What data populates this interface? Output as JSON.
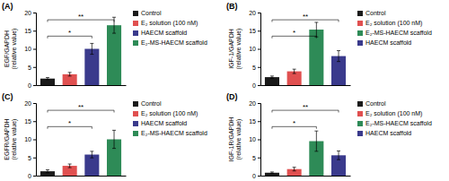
{
  "chart_data": [
    {
      "type": "bar",
      "title": "(A)",
      "y_label": "EGF/GAPDH\n(relative value)",
      "categories": [
        "Control",
        "E₂ solution (100 nM)",
        "HAECM scaffold",
        "E₂-MS-HAECM scaffold"
      ],
      "values": [
        1.8,
        3.0,
        10.0,
        16.5
      ],
      "errors": [
        0.3,
        0.5,
        1.5,
        2.2
      ],
      "colors": [
        "#1a1a1a",
        "#e05050",
        "#3a3a8c",
        "#2e8b57"
      ],
      "ylim": [
        0,
        20
      ],
      "yticks": [
        0,
        5,
        10,
        15,
        20
      ],
      "grid": false,
      "tick_labels": "y",
      "legend": "right",
      "annotations": [
        {
          "from": "Control",
          "to": "HAECM scaffold",
          "y": 13.5,
          "label": "*"
        },
        {
          "from": "Control",
          "to": "E₂-MS-HAECM scaffold",
          "y": 18.0,
          "label": "**"
        }
      ]
    },
    {
      "type": "bar",
      "title": "(B)",
      "y_label": "IGF-1/GAPDH\n(relative value)",
      "categories": [
        "Control",
        "E₂ solution (100 nM)",
        "E₂-MS-HAECM scaffold",
        "HAECM scaffold"
      ],
      "values": [
        2.2,
        3.8,
        15.3,
        8.0
      ],
      "errors": [
        0.3,
        0.6,
        2.0,
        1.5
      ],
      "colors": [
        "#1a1a1a",
        "#e05050",
        "#2e8b57",
        "#3a3a8c"
      ],
      "ylim": [
        0,
        20
      ],
      "yticks": [
        0,
        5,
        10,
        15,
        20
      ],
      "grid": false,
      "tick_labels": "y",
      "legend": "right",
      "annotations": [
        {
          "from": "Control",
          "to": "E₂-MS-HAECM scaffold",
          "y": 13.5,
          "label": "*"
        },
        {
          "from": "Control",
          "to": "HAECM scaffold",
          "y": 18.0,
          "label": "**"
        }
      ]
    },
    {
      "type": "bar",
      "title": "(C)",
      "y_label": "EGFR/GAPDH\n(relative value)",
      "categories": [
        "Control",
        "E₂ solution (100 nM)",
        "HAECM scaffold",
        "E₂-MS-HAECM scaffold"
      ],
      "values": [
        1.2,
        2.7,
        5.8,
        10.0
      ],
      "errors": [
        0.4,
        0.5,
        0.9,
        2.5
      ],
      "colors": [
        "#1a1a1a",
        "#e05050",
        "#3a3a8c",
        "#2e8b57"
      ],
      "ylim": [
        0,
        20
      ],
      "yticks": [
        0,
        5,
        10,
        15,
        20
      ],
      "grid": false,
      "tick_labels": "y",
      "legend": "right",
      "annotations": [
        {
          "from": "Control",
          "to": "HAECM scaffold",
          "y": 13.5,
          "label": "*"
        },
        {
          "from": "Control",
          "to": "E₂-MS-HAECM scaffold",
          "y": 18.0,
          "label": "**"
        }
      ]
    },
    {
      "type": "bar",
      "title": "(D)",
      "y_label": "IGF-1R/GAPDH\n(relative value)",
      "categories": [
        "Control",
        "E₂ solution (100 nM)",
        "E₂-MS-HAECM scaffold",
        "HAECM scaffold"
      ],
      "values": [
        0.8,
        1.8,
        9.5,
        5.6
      ],
      "errors": [
        0.2,
        0.5,
        2.8,
        1.2
      ],
      "colors": [
        "#1a1a1a",
        "#e05050",
        "#2e8b57",
        "#3a3a8c"
      ],
      "ylim": [
        0,
        20
      ],
      "yticks": [
        0,
        5,
        10,
        15,
        20
      ],
      "grid": false,
      "tick_labels": "y",
      "legend": "right",
      "annotations": [
        {
          "from": "Control",
          "to": "E₂-MS-HAECM scaffold",
          "y": 13.5,
          "label": "*"
        },
        {
          "from": "Control",
          "to": "HAECM scaffold",
          "y": 18.0,
          "label": "**"
        }
      ]
    }
  ]
}
